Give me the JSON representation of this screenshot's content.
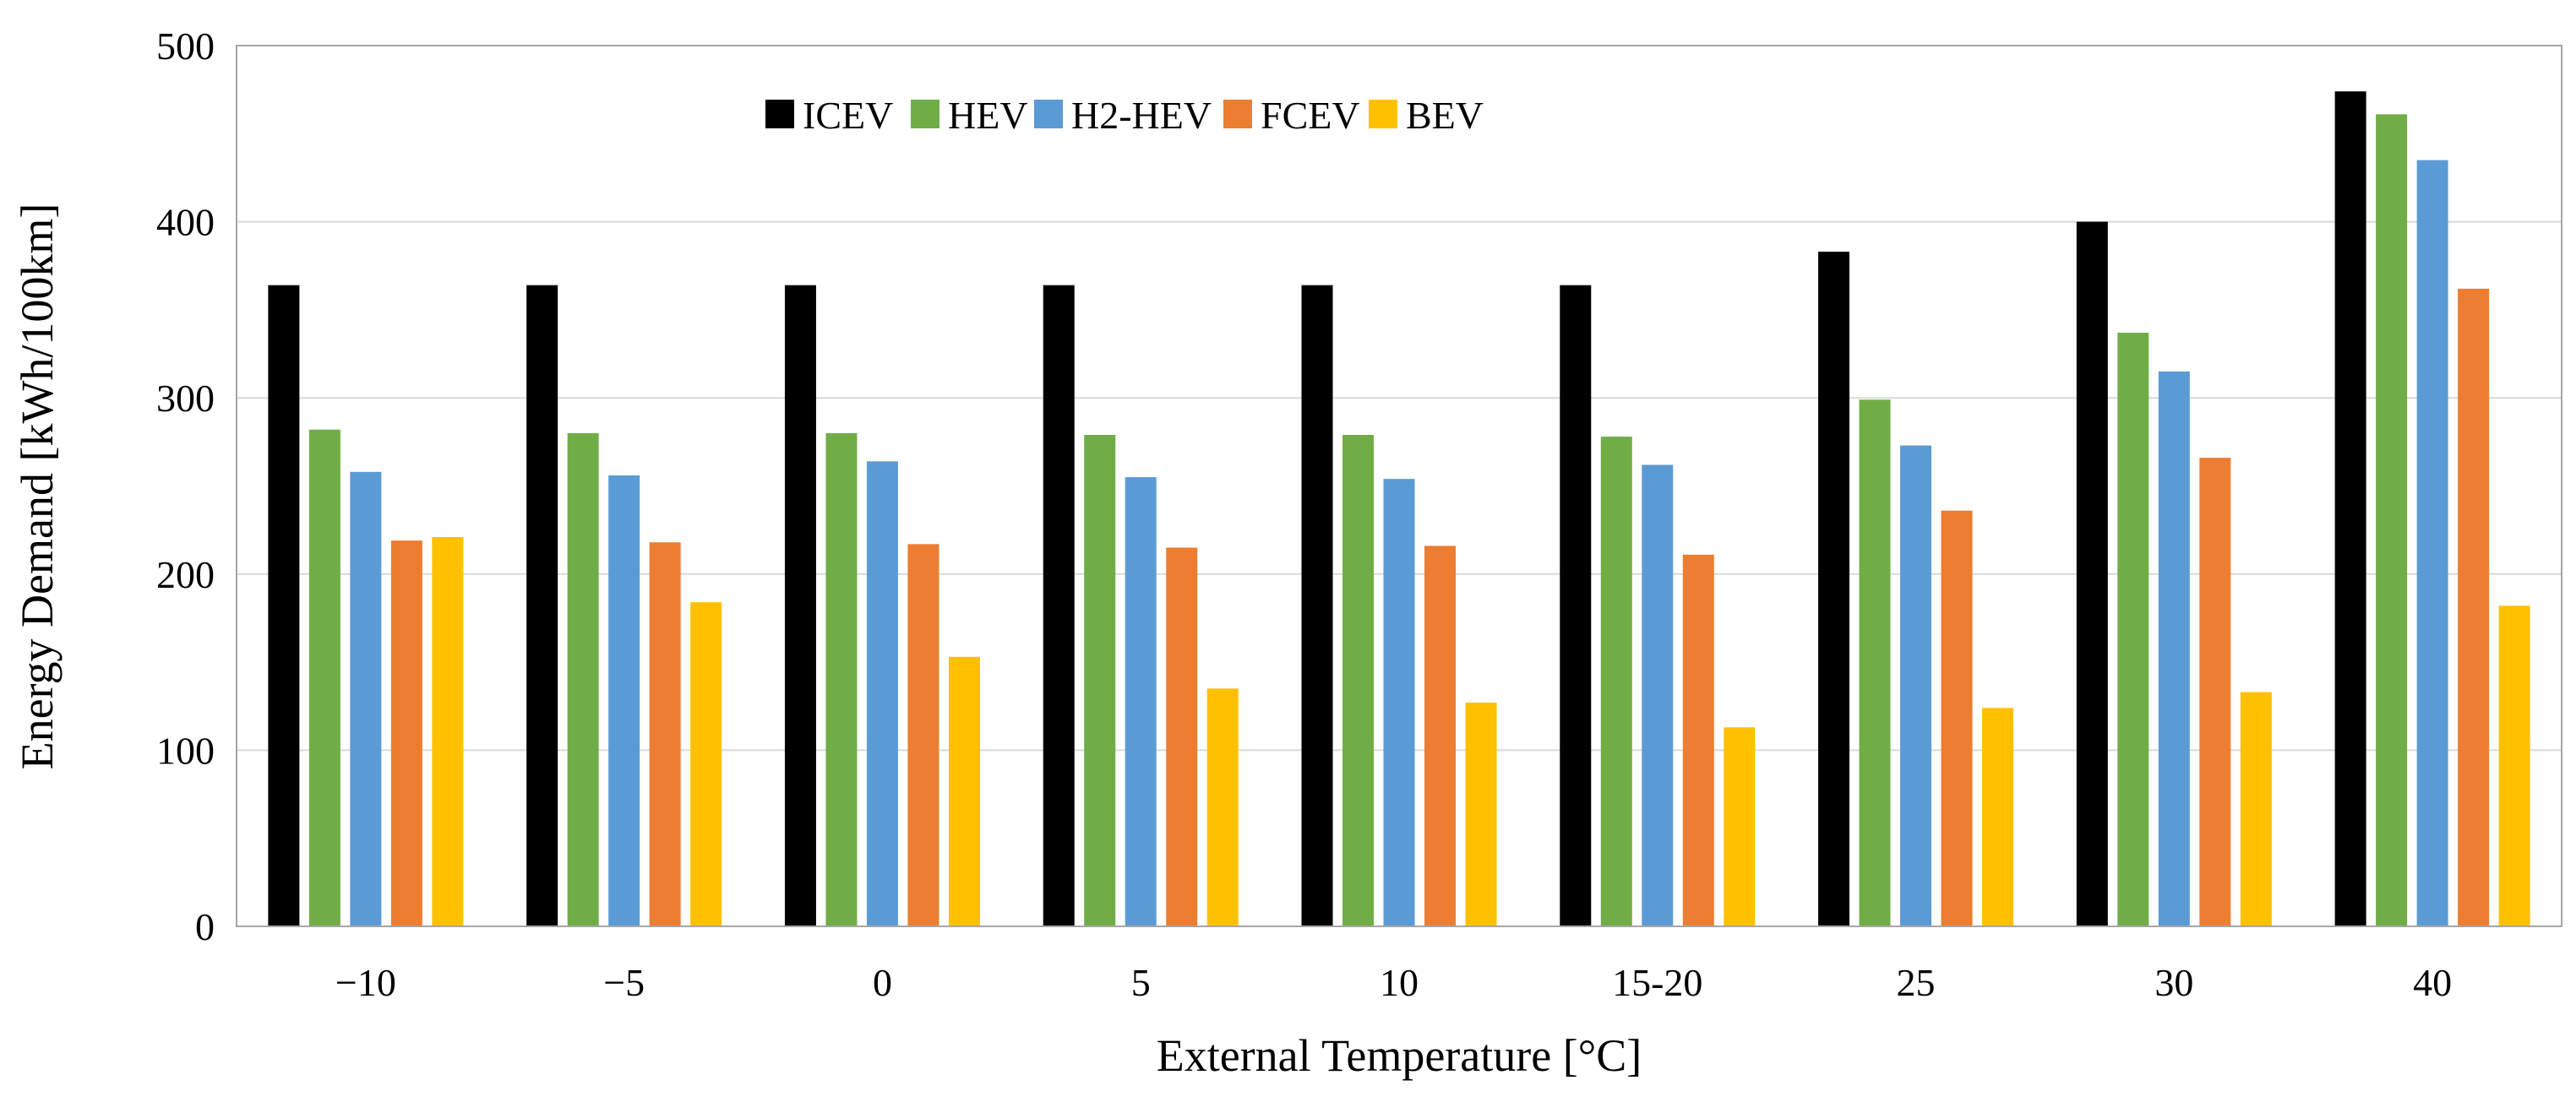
{
  "chart_data": {
    "type": "bar",
    "title": "",
    "xlabel": "External Temperature [°C]",
    "ylabel": "Energy Demand [kWh/100km]",
    "ylim": [
      0,
      500
    ],
    "yticks": [
      "0",
      "100",
      "200",
      "300",
      "400",
      "500"
    ],
    "grid": true,
    "legend_position": "top-left",
    "categories": [
      "−10",
      "−5",
      "0",
      "5",
      "10",
      "15-20",
      "25",
      "30",
      "40"
    ],
    "series": [
      {
        "name": "ICEV",
        "color": "#000000",
        "values": [
          364,
          364,
          364,
          364,
          364,
          364,
          383,
          400,
          474
        ]
      },
      {
        "name": "HEV",
        "color": "#70ad47",
        "values": [
          282,
          280,
          280,
          279,
          279,
          278,
          299,
          337,
          461
        ]
      },
      {
        "name": "H2-HEV",
        "color": "#5b9bd5",
        "values": [
          258,
          256,
          264,
          255,
          254,
          262,
          273,
          315,
          435
        ]
      },
      {
        "name": "FCEV",
        "color": "#ed7d31",
        "values": [
          219,
          218,
          217,
          215,
          216,
          211,
          236,
          266,
          362
        ]
      },
      {
        "name": "BEV",
        "color": "#ffc000",
        "values": [
          221,
          184,
          153,
          135,
          127,
          113,
          124,
          133,
          182
        ]
      }
    ]
  }
}
